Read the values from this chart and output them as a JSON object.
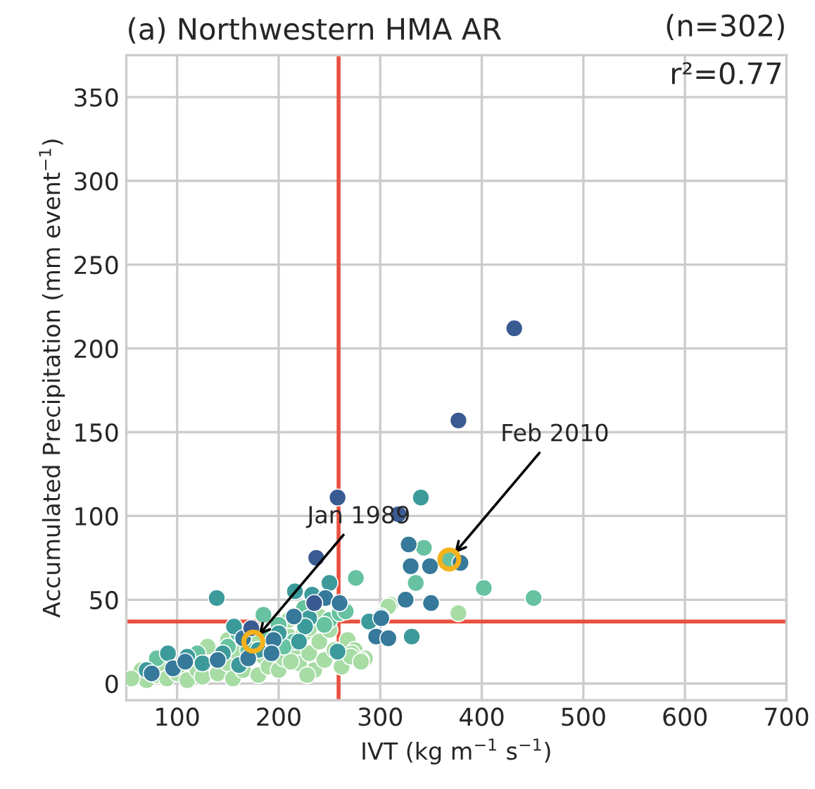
{
  "chart_data": {
    "type": "scatter",
    "title": "(a) Northwestern HMA AR",
    "xlabel": "IVT (kg m$^{−1}$ s$^{−1}$)",
    "ylabel": "Accumulated Precipitation (mm event$^{−1}$)",
    "xlim": [
      50,
      700
    ],
    "ylim": [
      -10,
      375
    ],
    "xticks": [
      100,
      200,
      300,
      400,
      500,
      600,
      700
    ],
    "yticks": [
      0,
      50,
      100,
      150,
      200,
      250,
      300,
      350
    ],
    "grid": true,
    "marker": "circle",
    "ref_lines": [
      {
        "axis": "x",
        "value": 259,
        "color": "#e8503e"
      },
      {
        "axis": "y",
        "value": 37,
        "color": "#e8503e"
      }
    ],
    "annotations": [
      "(n=302)",
      "r²=0.77",
      {
        "text": "Jan 1989",
        "x": 175,
        "y": 25
      },
      {
        "text": "Feb 2010",
        "x": 368,
        "y": 74
      }
    ],
    "series": [
      {
        "x": [
          65,
          70,
          80,
          85,
          90,
          100,
          110,
          120,
          125,
          140,
          150,
          155,
          160,
          165,
          180,
          185,
          190,
          200,
          205,
          210,
          215,
          220,
          225,
          230,
          235,
          240,
          245,
          250,
          255,
          262,
          268,
          275,
          285,
          230,
          210,
          240,
          150,
          130,
          281,
          272,
          377,
          310,
          308,
          271,
          281,
          212,
          228,
          55,
          175,
          80,
          120,
          150,
          170,
          190,
          200,
          215,
          250,
          160,
          185,
          225,
          260,
          205,
          245,
          343,
          368,
          276,
          402,
          451,
          335,
          266,
          301,
          70,
          110,
          125,
          145,
          161,
          156,
          180,
          230,
          226,
          258,
          200,
          216,
          233,
          250,
          220,
          139,
          91,
          340,
          289,
          331,
          75,
          96,
          108,
          140,
          165,
          195,
          193,
          246,
          260,
          170,
          215,
          328,
          330,
          349,
          379,
          325,
          350,
          301,
          296,
          308,
          173,
          235,
          237,
          258,
          318,
          432,
          377
        ],
        "values": [
          8,
          2,
          5,
          12,
          3,
          6,
          2,
          8,
          4,
          6,
          12,
          3,
          18,
          8,
          5,
          16,
          10,
          8,
          15,
          28,
          20,
          12,
          30,
          18,
          8,
          25,
          14,
          32,
          20,
          10,
          26,
          20,
          15,
          33,
          38,
          40,
          26,
          22,
          14,
          18,
          42,
          47,
          46,
          16,
          13,
          13,
          5,
          3,
          25,
          15,
          18,
          22,
          20,
          28,
          35,
          25,
          38,
          30,
          41,
          45,
          42,
          22,
          35,
          81,
          74,
          63,
          57,
          51,
          60,
          43,
          40,
          8,
          16,
          12,
          18,
          11,
          34,
          20,
          39,
          34,
          19,
          30,
          55,
          53,
          60,
          25,
          51,
          18,
          111,
          37,
          28,
          6,
          9,
          13,
          14,
          27,
          26,
          18,
          51,
          48,
          15,
          40,
          83,
          70,
          70,
          72,
          50,
          48,
          39,
          28,
          27,
          33,
          48,
          75,
          111,
          101,
          212,
          157
        ],
        "colors": [
          "#a7dca5",
          "#a7dca5",
          "#a7dca5",
          "#a7dca5",
          "#a7dca5",
          "#a7dca5",
          "#a7dca5",
          "#a7dca5",
          "#a7dca5",
          "#a7dca5",
          "#a7dca5",
          "#a7dca5",
          "#a7dca5",
          "#a7dca5",
          "#a7dca5",
          "#a7dca5",
          "#a7dca5",
          "#a7dca5",
          "#a7dca5",
          "#a7dca5",
          "#a7dca5",
          "#a7dca5",
          "#a7dca5",
          "#a7dca5",
          "#a7dca5",
          "#a7dca5",
          "#a7dca5",
          "#a7dca5",
          "#a7dca5",
          "#a7dca5",
          "#a7dca5",
          "#a7dca5",
          "#a7dca5",
          "#a7dca5",
          "#a7dca5",
          "#a7dca5",
          "#a7dca5",
          "#a7dca5",
          "#a7dca5",
          "#a7dca5",
          "#a7dca5",
          "#a7dca5",
          "#a7dca5",
          "#a7dca5",
          "#a7dca5",
          "#a7dca5",
          "#a7dca5",
          "#a7dca5",
          "#a7dca5",
          "#66c2a0",
          "#66c2a0",
          "#66c2a0",
          "#66c2a0",
          "#66c2a0",
          "#66c2a0",
          "#66c2a0",
          "#66c2a0",
          "#66c2a0",
          "#66c2a0",
          "#66c2a0",
          "#66c2a0",
          "#66c2a0",
          "#66c2a0",
          "#66c2a0",
          "#66c2a0",
          "#66c2a0",
          "#66c2a0",
          "#66c2a0",
          "#66c2a0",
          "#66c2a0",
          "#66c2a0",
          "#3d9a9b",
          "#3d9a9b",
          "#3d9a9b",
          "#3d9a9b",
          "#3d9a9b",
          "#3d9a9b",
          "#3d9a9b",
          "#3d9a9b",
          "#3d9a9b",
          "#3d9a9b",
          "#3d9a9b",
          "#3d9a9b",
          "#3d9a9b",
          "#3d9a9b",
          "#3d9a9b",
          "#3d9a9b",
          "#3d9a9b",
          "#3d9a9b",
          "#3d9a9b",
          "#3d9a9b",
          "#36799a",
          "#36799a",
          "#36799a",
          "#36799a",
          "#36799a",
          "#36799a",
          "#36799a",
          "#36799a",
          "#36799a",
          "#36799a",
          "#36799a",
          "#36799a",
          "#36799a",
          "#36799a",
          "#36799a",
          "#36799a",
          "#36799a",
          "#36799a",
          "#36799a",
          "#36799a",
          "#3a5a92",
          "#3a5a92",
          "#3a5a92",
          "#3a5a92",
          "#3a5a92",
          "#3a5a92",
          "#3a5a92"
        ]
      },
      {
        "x": [
          175,
          368
        ],
        "values": [
          25,
          74
        ],
        "color": "#f4b21c"
      }
    ]
  }
}
